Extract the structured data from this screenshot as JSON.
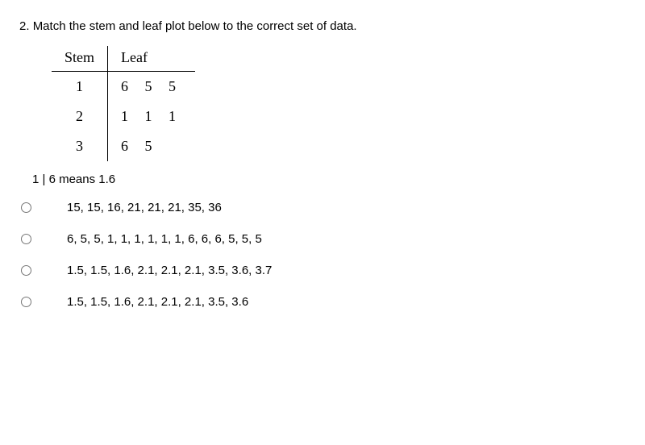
{
  "question": {
    "number": "2.",
    "prompt": "Match the stem and leaf plot below to the correct set of data."
  },
  "stem_leaf": {
    "headers": {
      "stem": "Stem",
      "leaf": "Leaf"
    },
    "rows": [
      {
        "stem": "1",
        "leaf": "6 5 5"
      },
      {
        "stem": "2",
        "leaf": "1 1 1"
      },
      {
        "stem": "3",
        "leaf": "6 5"
      }
    ],
    "key": "1 | 6 means 1.6",
    "font_family": "Times New Roman",
    "font_size_pt": 14,
    "border_color": "#000000"
  },
  "options": [
    "15, 15, 16, 21, 21, 21, 35, 36",
    "6, 5, 5, 1, 1, 1, 1, 1, 1, 6, 6, 6, 5, 5, 5",
    "1.5, 1.5, 1.6, 2.1, 2.1, 2.1, 3.5, 3.6, 3.7",
    "1.5, 1.5, 1.6, 2.1, 2.1, 2.1, 3.5, 3.6"
  ],
  "styling": {
    "background_color": "#ffffff",
    "text_color": "#000000",
    "body_font": "Verdana",
    "body_font_size_pt": 11
  }
}
